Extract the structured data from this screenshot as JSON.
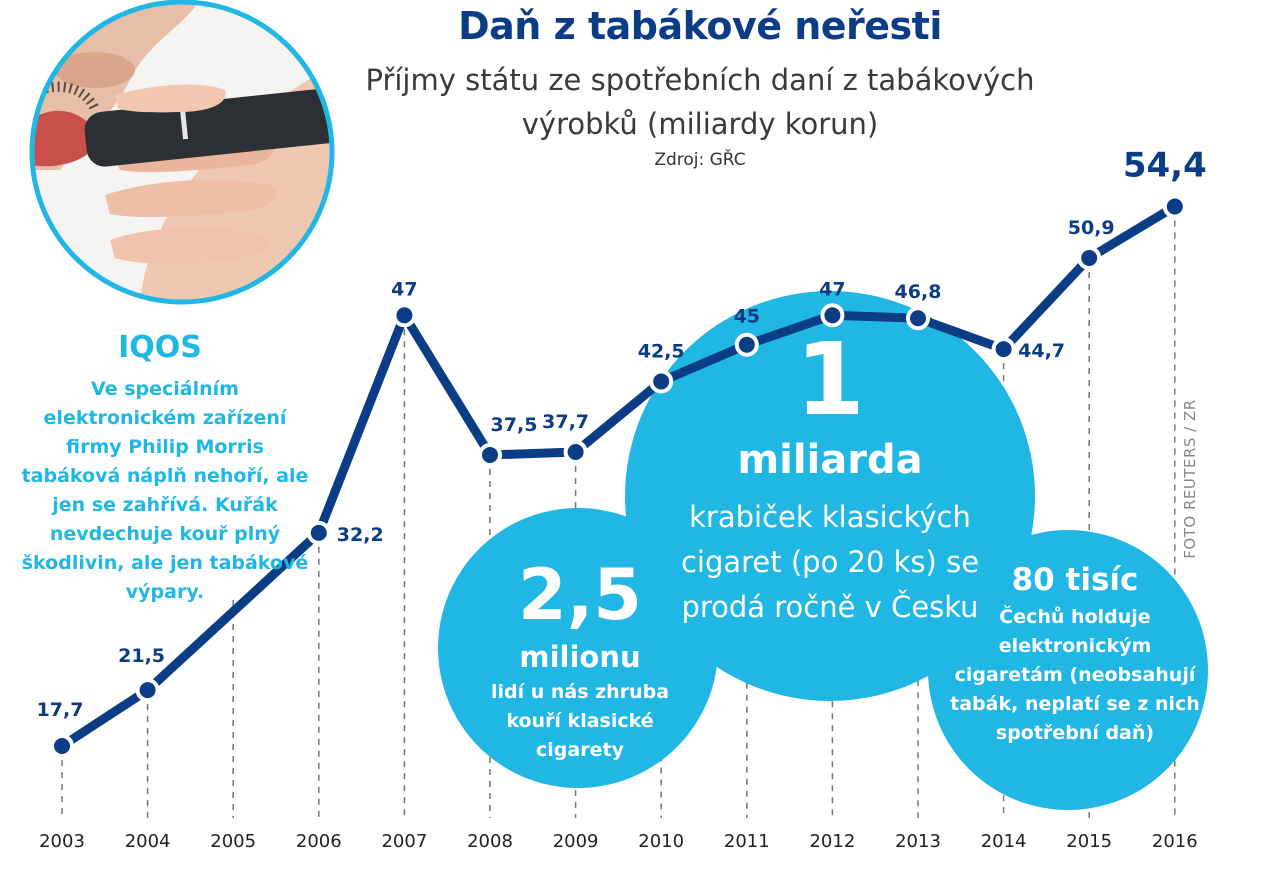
{
  "infographic": {
    "title": "Daň z tabákové neřesti",
    "subtitle": "Příjmy státu ze spotřebních daní z tabákových výrobků (miliardy korun)",
    "source": "Zdroj: GŘC",
    "photo_credit": "FOTO REUTERS / ZR",
    "iqos": {
      "title": "IQOS",
      "text": "Ve speciálním elektronickém zařízení firmy Philip Morris tabáková náplň nehoří, ale jen se zahřívá. Kuřák nevdechuje kouř plný škodlivin, ale jen tabákové výpary."
    },
    "bubbles": {
      "packs": {
        "number": "1",
        "unit": "miliarda",
        "text": "krabiček klasických cigaret (po 20 ks) se prodá ročně v Česku"
      },
      "smokers": {
        "number": "2,5",
        "unit": "milionu",
        "text": "lidí u nás zhruba kouří klasické cigarety"
      },
      "ecig": {
        "number": "80 tisíc",
        "text": "Čechů holduje elektronickým cigaretám (neobsahují tabák, neplatí se z nich spotřební daň)"
      }
    },
    "colors": {
      "line": "#0b3d86",
      "bubble": "#21b7e5",
      "accent_text": "#21b7e5"
    }
  },
  "chart_data": {
    "type": "line",
    "title": "Daň z tabákové neřesti",
    "subtitle": "Příjmy státu ze spotřebních daní z tabákových výrobků (miliardy korun)",
    "xlabel": "",
    "ylabel": "",
    "grid": "vertical dashed lines",
    "categories": [
      "2003",
      "2004",
      "2005",
      "2006",
      "2007",
      "2008",
      "2009",
      "2010",
      "2011",
      "2012",
      "2013",
      "2014",
      "2015",
      "2016"
    ],
    "values": [
      17.7,
      21.5,
      null,
      32.2,
      47,
      37.5,
      37.7,
      42.5,
      45,
      47,
      46.8,
      44.7,
      50.9,
      54.4
    ],
    "labels": [
      "17,7",
      "21,5",
      "",
      "32,2",
      "47",
      "37,5",
      "37,7",
      "42,5",
      "45",
      "47",
      "46,8",
      "44,7",
      "50,9",
      "54,4"
    ]
  }
}
